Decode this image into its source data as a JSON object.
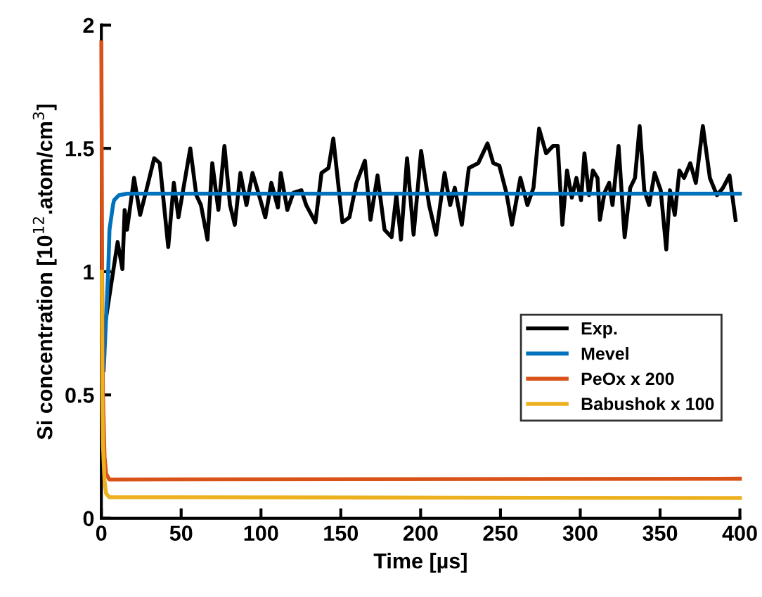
{
  "chart_data": {
    "type": "line",
    "xlabel": "Time [µs]",
    "ylabel": "Si concentration [10$^{12}$.atom/cm$^{3}$]",
    "xlim": [
      0,
      400
    ],
    "ylim": [
      0,
      2
    ],
    "xticks": [
      0,
      50,
      100,
      150,
      200,
      250,
      300,
      350,
      400
    ],
    "yticks": [
      0,
      {
        "value": 0.5,
        "label": "0.5"
      },
      1,
      {
        "value": 1.5,
        "label": "1.5"
      },
      2
    ],
    "grid": false,
    "legend": "bottom right",
    "line_style": "solid",
    "marker": "none",
    "series": [
      {
        "name": "Exp.",
        "color": "#000000",
        "x": [
          2,
          2.9,
          10.2,
          13.2,
          14.6,
          16.1,
          20.5,
          24.3,
          27.8,
          33.1,
          36.6,
          41.9,
          45.4,
          48.3,
          55.7,
          59.5,
          62.4,
          66.5,
          69.5,
          73.3,
          77.1,
          80.6,
          83.6,
          87.1,
          90.9,
          94.7,
          98.8,
          102.7,
          106.5,
          110.6,
          112.4,
          116.5,
          120.3,
          125.3,
          128.3,
          134.1,
          137.9,
          142.3,
          145.3,
          151,
          155.4,
          159.8,
          165.1,
          168.6,
          173,
          177.4,
          181.8,
          184.8,
          187.7,
          191.5,
          195.6,
          200.3,
          205.3,
          209.7,
          215,
          218.5,
          221.4,
          225.8,
          230.2,
          236.1,
          241.9,
          245.5,
          249.3,
          253.7,
          257.2,
          262.5,
          266.9,
          270.7,
          274.2,
          278.6,
          283,
          285.9,
          288.8,
          291.7,
          294.7,
          297.6,
          300.5,
          302.6,
          305.5,
          307.9,
          310.8,
          312.3,
          315.2,
          318.1,
          320.2,
          324,
          327.8,
          331.3,
          334.3,
          337.2,
          340.1,
          343.1,
          346.6,
          350.4,
          353.9,
          356.2,
          359.2,
          362.1,
          365,
          368.9,
          372.4,
          376.8,
          381.2,
          385.6,
          389.4,
          393.5,
          397.3
        ],
        "values": [
          0.78,
          0.81,
          1.12,
          1.01,
          1.25,
          1.17,
          1.38,
          1.23,
          1.32,
          1.46,
          1.44,
          1.1,
          1.36,
          1.22,
          1.5,
          1.31,
          1.27,
          1.13,
          1.44,
          1.25,
          1.51,
          1.27,
          1.19,
          1.4,
          1.27,
          1.4,
          1.31,
          1.22,
          1.36,
          1.26,
          1.4,
          1.25,
          1.32,
          1.33,
          1.27,
          1.2,
          1.4,
          1.42,
          1.54,
          1.2,
          1.22,
          1.36,
          1.45,
          1.21,
          1.39,
          1.17,
          1.14,
          1.31,
          1.13,
          1.46,
          1.15,
          1.49,
          1.27,
          1.15,
          1.4,
          1.27,
          1.34,
          1.19,
          1.42,
          1.44,
          1.52,
          1.44,
          1.43,
          1.32,
          1.19,
          1.38,
          1.27,
          1.34,
          1.58,
          1.48,
          1.51,
          1.51,
          1.19,
          1.41,
          1.3,
          1.38,
          1.29,
          1.48,
          1.31,
          1.41,
          1.38,
          1.21,
          1.32,
          1.36,
          1.27,
          1.51,
          1.14,
          1.34,
          1.38,
          1.59,
          1.33,
          1.27,
          1.4,
          1.33,
          1.09,
          1.33,
          1.23,
          1.41,
          1.38,
          1.44,
          1.36,
          1.59,
          1.38,
          1.31,
          1.34,
          1.39,
          1.21
        ]
      },
      {
        "name": "Mevel",
        "color": "#0072bd",
        "x": [
          1.5,
          4.4,
          5.1,
          7.3,
          8,
          11,
          16,
          400
        ],
        "values": [
          0.6,
          1.02,
          1.17,
          1.27,
          1.29,
          1.31,
          1.316,
          1.316
        ]
      },
      {
        "name": "PeOx x 200",
        "color": "#d95319",
        "x": [
          0,
          0.5,
          1,
          2,
          3,
          5,
          400
        ],
        "values": [
          1.93,
          1.0,
          0.5,
          0.25,
          0.18,
          0.157,
          0.16
        ]
      },
      {
        "name": "Babushok x 100",
        "color": "#edb120",
        "x": [
          0.3,
          0.6,
          1,
          2,
          3,
          5,
          400
        ],
        "values": [
          1.0,
          0.5,
          0.3,
          0.15,
          0.1,
          0.085,
          0.082
        ]
      }
    ]
  }
}
